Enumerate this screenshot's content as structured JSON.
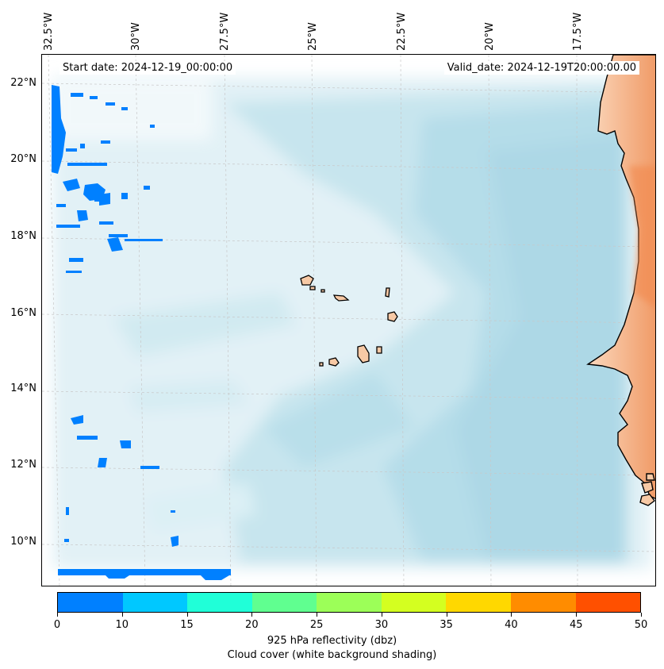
{
  "map": {
    "start_date": "Start date: 2024-12-19_00:00:00",
    "valid_date": "Valid_date: 2024-12-19T20:00:00.00",
    "lon_labels": [
      "32.5°W",
      "30°W",
      "27.5°W",
      "25°W",
      "22.5°W",
      "20°W",
      "17.5°W"
    ],
    "lat_labels": [
      "22°N",
      "20°N",
      "18°N",
      "16°N",
      "14°N",
      "12°N",
      "10°N"
    ],
    "colors": {
      "land": "#f7c9a5",
      "land_inland": "#f3a877",
      "ocean_cloud": "#add8e6",
      "low_reflectivity": "#0080ff"
    }
  },
  "colorbar": {
    "ticks": [
      "0",
      "10",
      "15",
      "20",
      "25",
      "30",
      "35",
      "40",
      "45",
      "50"
    ],
    "colors": [
      "#0080ff",
      "#00c8ff",
      "#20ffd8",
      "#60ff90",
      "#9cff58",
      "#d4ff20",
      "#ffd800",
      "#ff8c00",
      "#ff5000"
    ],
    "label_line1": "925 hPa reflectivity (dbz)",
    "label_line2": "Cloud cover (white background shading)"
  }
}
